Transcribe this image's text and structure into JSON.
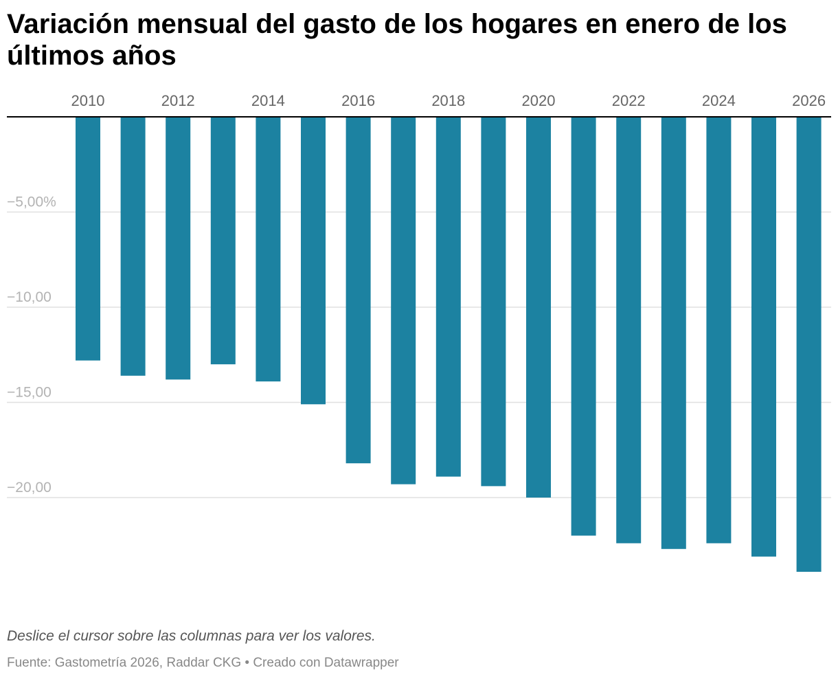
{
  "title": "Variación mensual del gasto de los hogares en enero de los últimos años",
  "note": "Deslice el cursor sobre las columnas para ver los valores.",
  "source": "Fuente: Gastometría 2026, Raddar CKG • Creado con Datawrapper",
  "colors": {
    "bar": "#1c82a1",
    "grid": "#e0e0e0",
    "baseline": "#000000"
  },
  "chart_data": {
    "type": "bar",
    "orientation": "vertical",
    "categories": [
      "2010",
      "2011",
      "2012",
      "2013",
      "2014",
      "2015",
      "2016",
      "2017",
      "2018",
      "2019",
      "2020",
      "2021",
      "2022",
      "2023",
      "2024",
      "2025",
      "2026"
    ],
    "x_tick_labels": [
      "2010",
      "2012",
      "2014",
      "2016",
      "2018",
      "2020",
      "2022",
      "2024",
      "2026"
    ],
    "x_axis_position": "top",
    "series": [
      {
        "values": [
          -12.8,
          -13.6,
          -13.8,
          -13.0,
          -13.9,
          -15.1,
          -18.2,
          -19.3,
          -18.9,
          -19.4,
          -20.0,
          -22.0,
          -22.4,
          -22.7,
          -22.4,
          -23.1,
          -23.9
        ]
      }
    ],
    "y_ticks": [
      {
        "value": -5,
        "label": "−5,00%"
      },
      {
        "value": -10,
        "label": "−10,00"
      },
      {
        "value": -15,
        "label": "−15,00"
      },
      {
        "value": -20,
        "label": "−20,00"
      }
    ],
    "ylim": [
      -25.5,
      0
    ],
    "grid": true,
    "legend": "none"
  }
}
